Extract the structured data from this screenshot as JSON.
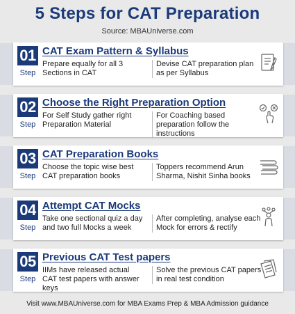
{
  "header": {
    "title": "5 Steps for CAT Preparation",
    "source": "Source: MBAUniverse.com"
  },
  "steps": [
    {
      "number": "01",
      "step_label": "Step",
      "title": "CAT Exam Pattern & Syllabus",
      "left_text": "Prepare equally for all 3 Sections in CAT",
      "right_text": "Devise CAT preparation plan as per Syllabus",
      "icon": "checklist-icon"
    },
    {
      "number": "02",
      "step_label": "Step",
      "title": "Choose the Right Preparation Option",
      "left_text": "For Self Study gather right Preparation Material",
      "right_text": "For Coaching based preparation follow the instructions",
      "icon": "choice-hand-icon"
    },
    {
      "number": "03",
      "step_label": "Step",
      "title": "CAT Preparation Books",
      "left_text": "Choose the topic wise best CAT preparation books",
      "right_text": "Toppers recommend Arun Sharma, Nishit Sinha books",
      "icon": "books-icon"
    },
    {
      "number": "04",
      "step_label": "Step",
      "title": "Attempt CAT Mocks",
      "left_text": "Take one sectional quiz a day and two full Mocks a week",
      "right_text": "After completing, analyse each Mock for errors & rectify",
      "icon": "analysis-person-icon"
    },
    {
      "number": "05",
      "step_label": "Step",
      "title": "Previous CAT Test papers",
      "left_text": "IIMs have released actual CAT test papers with answer keys",
      "right_text": "Solve the previous CAT papers in real test condition",
      "icon": "papers-icon"
    }
  ],
  "footer": {
    "text": "Visit www.MBAUniverse.com for MBA Exams Prep & MBA Admission guidance"
  },
  "colors": {
    "accent": "#1b3a7a",
    "background": "#e9e9e9",
    "band": "#d9dde3"
  }
}
